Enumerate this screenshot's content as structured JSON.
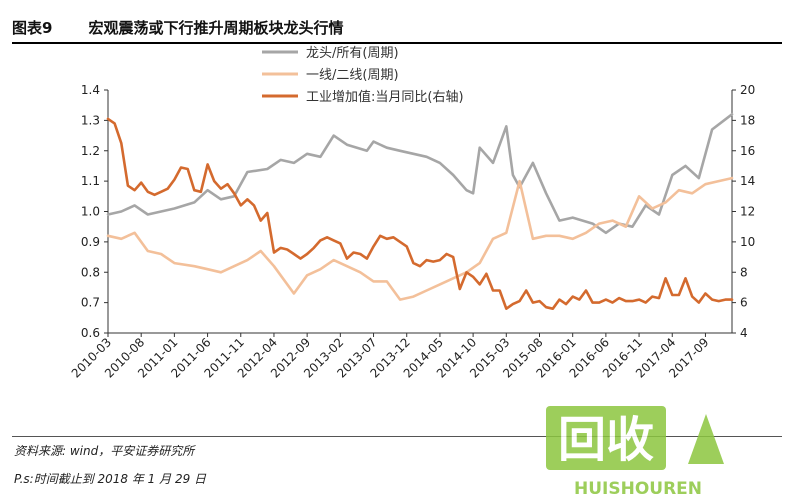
{
  "header": {
    "figure_number": "图表9",
    "title": "宏观震荡或下行推升周期板块龙头行情"
  },
  "footer": {
    "source": "资料来源: wind，平安证券研究所",
    "note": "P.s:时间截止到 2018 年 1 月 29 日"
  },
  "watermark": {
    "text": "回收",
    "subtext": "HUISHOUREN",
    "color": "#8cc63f"
  },
  "chart_data": {
    "type": "line",
    "x_ticks": [
      "2010-03",
      "2010-08",
      "2011-01",
      "2011-06",
      "2011-11",
      "2012-04",
      "2012-09",
      "2013-02",
      "2013-07",
      "2013-12",
      "2014-05",
      "2014-10",
      "2015-03",
      "2015-08",
      "2016-01",
      "2016-06",
      "2016-11",
      "2017-04",
      "2017-09"
    ],
    "x_range": [
      "2010-03",
      "2018-01"
    ],
    "y_left_range": [
      0.6,
      1.4
    ],
    "y_left_ticks": [
      "0.6",
      "0.7",
      "0.8",
      "0.9",
      "1.0",
      "1.1",
      "1.2",
      "1.3",
      "1.4"
    ],
    "y_right_range": [
      4,
      20
    ],
    "y_right_ticks": [
      "4",
      "6",
      "8",
      "10",
      "12",
      "14",
      "16",
      "18",
      "20"
    ],
    "legend_position": "top-center",
    "series": [
      {
        "name": "龙头/所有(周期)",
        "axis": "left",
        "color": "#a6a6a6",
        "x": [
          "2010-03",
          "2010-05",
          "2010-07",
          "2010-09",
          "2010-11",
          "2011-01",
          "2011-04",
          "2011-06",
          "2011-08",
          "2011-10",
          "2011-12",
          "2012-03",
          "2012-05",
          "2012-07",
          "2012-09",
          "2012-11",
          "2013-01",
          "2013-03",
          "2013-06",
          "2013-07",
          "2013-09",
          "2013-11",
          "2014-01",
          "2014-03",
          "2014-05",
          "2014-07",
          "2014-09",
          "2014-10",
          "2014-11",
          "2015-01",
          "2015-03",
          "2015-04",
          "2015-05",
          "2015-07",
          "2015-09",
          "2015-11",
          "2016-01",
          "2016-04",
          "2016-06",
          "2016-08",
          "2016-10",
          "2016-12",
          "2017-02",
          "2017-04",
          "2017-06",
          "2017-08",
          "2017-10",
          "2018-01"
        ],
        "y": [
          0.99,
          1.0,
          1.02,
          0.99,
          1.0,
          1.01,
          1.03,
          1.07,
          1.04,
          1.05,
          1.13,
          1.14,
          1.17,
          1.16,
          1.19,
          1.18,
          1.25,
          1.22,
          1.2,
          1.23,
          1.21,
          1.2,
          1.19,
          1.18,
          1.16,
          1.12,
          1.07,
          1.06,
          1.21,
          1.16,
          1.28,
          1.12,
          1.08,
          1.16,
          1.06,
          0.97,
          0.98,
          0.96,
          0.93,
          0.96,
          0.95,
          1.02,
          0.99,
          1.12,
          1.15,
          1.11,
          1.27,
          1.32
        ]
      },
      {
        "name": "一线/二线(周期)",
        "axis": "left",
        "color": "#f3c09a",
        "x": [
          "2010-03",
          "2010-05",
          "2010-07",
          "2010-09",
          "2010-11",
          "2011-01",
          "2011-04",
          "2011-06",
          "2011-08",
          "2011-10",
          "2011-12",
          "2012-02",
          "2012-04",
          "2012-07",
          "2012-09",
          "2012-11",
          "2013-01",
          "2013-03",
          "2013-05",
          "2013-07",
          "2013-09",
          "2013-11",
          "2014-01",
          "2014-03",
          "2014-05",
          "2014-07",
          "2014-09",
          "2014-11",
          "2015-01",
          "2015-03",
          "2015-05",
          "2015-07",
          "2015-09",
          "2015-11",
          "2016-01",
          "2016-03",
          "2016-05",
          "2016-07",
          "2016-09",
          "2016-11",
          "2017-01",
          "2017-03",
          "2017-05",
          "2017-07",
          "2017-09",
          "2017-11",
          "2018-01"
        ],
        "y": [
          0.92,
          0.91,
          0.93,
          0.87,
          0.86,
          0.83,
          0.82,
          0.81,
          0.8,
          0.82,
          0.84,
          0.87,
          0.82,
          0.73,
          0.79,
          0.81,
          0.84,
          0.82,
          0.8,
          0.77,
          0.77,
          0.71,
          0.72,
          0.74,
          0.76,
          0.78,
          0.8,
          0.83,
          0.91,
          0.93,
          1.1,
          0.91,
          0.92,
          0.92,
          0.91,
          0.93,
          0.96,
          0.97,
          0.95,
          1.05,
          1.01,
          1.03,
          1.07,
          1.06,
          1.09,
          1.1,
          1.11
        ]
      },
      {
        "name": "工业增加值:当月同比(右轴)",
        "axis": "right",
        "color": "#d46a2e",
        "x": [
          "2010-03",
          "2010-04",
          "2010-05",
          "2010-06",
          "2010-07",
          "2010-08",
          "2010-09",
          "2010-10",
          "2010-11",
          "2010-12",
          "2011-01",
          "2011-02",
          "2011-03",
          "2011-04",
          "2011-05",
          "2011-06",
          "2011-07",
          "2011-08",
          "2011-09",
          "2011-10",
          "2011-11",
          "2011-12",
          "2012-01",
          "2012-02",
          "2012-03",
          "2012-04",
          "2012-05",
          "2012-06",
          "2012-07",
          "2012-08",
          "2012-09",
          "2012-10",
          "2012-11",
          "2012-12",
          "2013-01",
          "2013-02",
          "2013-03",
          "2013-04",
          "2013-05",
          "2013-06",
          "2013-07",
          "2013-08",
          "2013-09",
          "2013-10",
          "2013-11",
          "2013-12",
          "2014-01",
          "2014-02",
          "2014-03",
          "2014-04",
          "2014-05",
          "2014-06",
          "2014-07",
          "2014-08",
          "2014-09",
          "2014-10",
          "2014-11",
          "2014-12",
          "2015-01",
          "2015-02",
          "2015-03",
          "2015-04",
          "2015-05",
          "2015-06",
          "2015-07",
          "2015-08",
          "2015-09",
          "2015-10",
          "2015-11",
          "2015-12",
          "2016-01",
          "2016-02",
          "2016-03",
          "2016-04",
          "2016-05",
          "2016-06",
          "2016-07",
          "2016-08",
          "2016-09",
          "2016-10",
          "2016-11",
          "2016-12",
          "2017-01",
          "2017-02",
          "2017-03",
          "2017-04",
          "2017-05",
          "2017-06",
          "2017-07",
          "2017-08",
          "2017-09",
          "2017-10",
          "2017-11",
          "2017-12",
          "2018-01"
        ],
        "y": [
          18.1,
          17.8,
          16.5,
          13.7,
          13.4,
          13.9,
          13.3,
          13.1,
          13.3,
          13.5,
          14.1,
          14.9,
          14.8,
          13.4,
          13.3,
          15.1,
          14.0,
          13.5,
          13.8,
          13.2,
          12.4,
          12.8,
          12.4,
          11.4,
          11.9,
          9.3,
          9.6,
          9.5,
          9.2,
          8.9,
          9.2,
          9.6,
          10.1,
          10.3,
          10.1,
          9.9,
          8.9,
          9.3,
          9.2,
          8.9,
          9.7,
          10.4,
          10.2,
          10.3,
          10.0,
          9.7,
          8.6,
          8.4,
          8.8,
          8.7,
          8.8,
          9.2,
          9.0,
          6.9,
          8.0,
          7.7,
          7.2,
          7.9,
          6.8,
          6.8,
          5.6,
          5.9,
          6.1,
          6.8,
          6.0,
          6.1,
          5.7,
          5.6,
          6.2,
          5.9,
          6.4,
          6.2,
          6.8,
          6.0,
          6.0,
          6.2,
          6.0,
          6.3,
          6.1,
          6.1,
          6.2,
          6.0,
          6.4,
          6.3,
          7.6,
          6.5,
          6.5,
          7.6,
          6.4,
          6.0,
          6.6,
          6.2,
          6.1,
          6.2,
          6.2
        ]
      }
    ]
  }
}
